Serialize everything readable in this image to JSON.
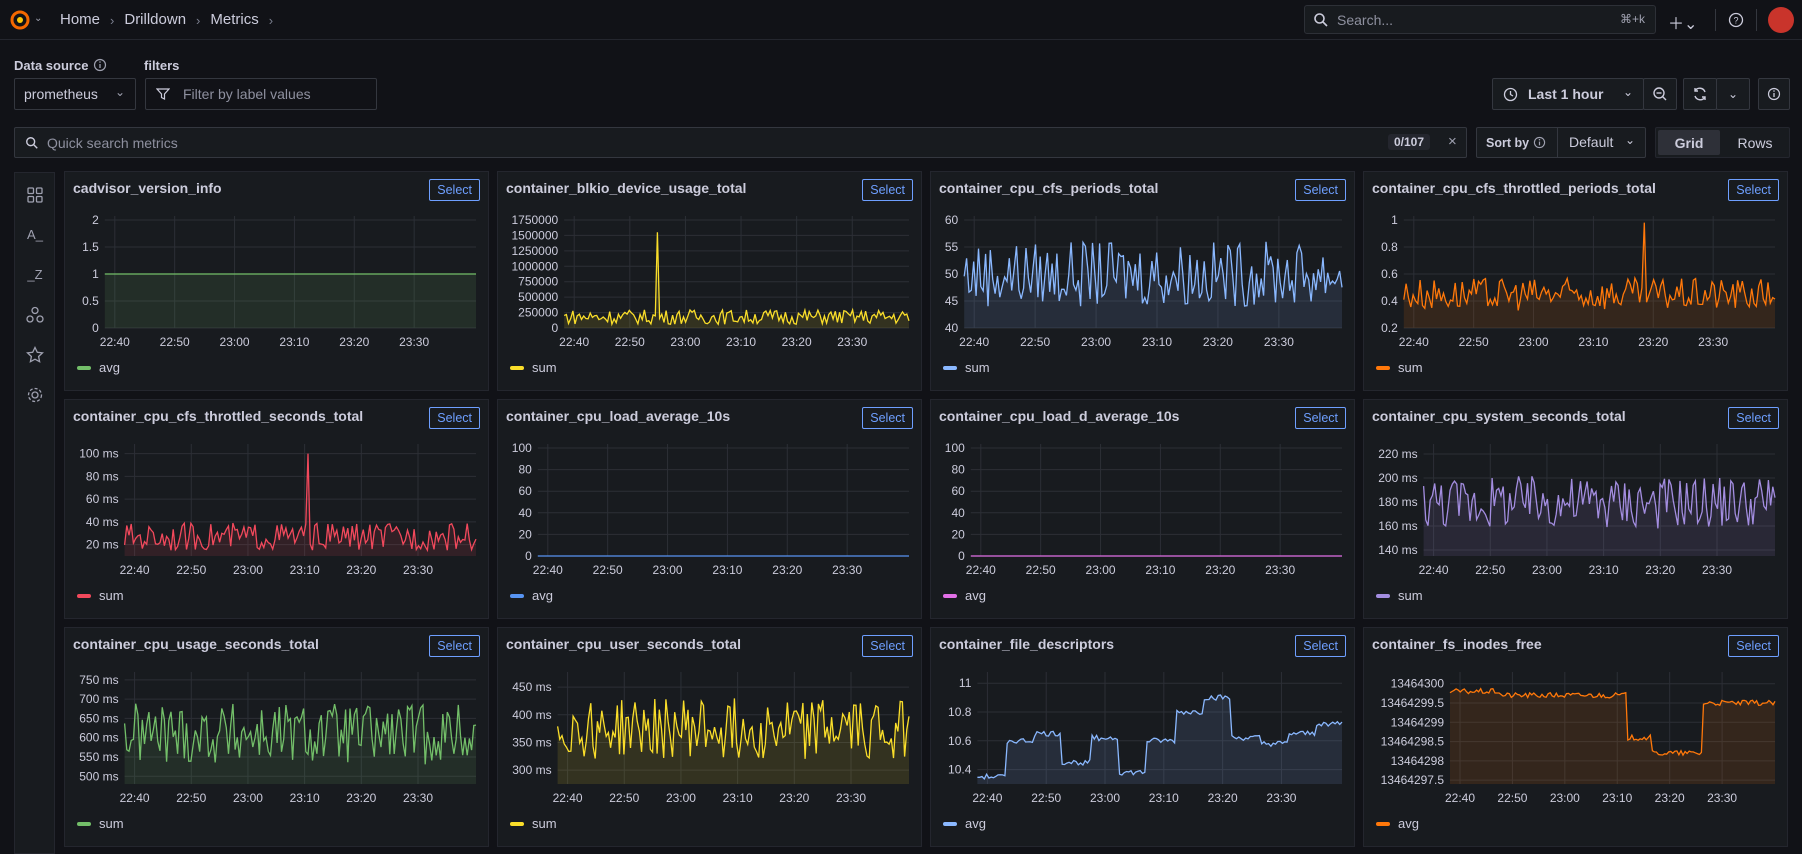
{
  "nav": {
    "breadcrumbs": [
      "Home",
      "Drilldown",
      "Metrics"
    ],
    "search_placeholder": "Search...",
    "search_shortcut": "⌘+k"
  },
  "controls": {
    "datasource_label": "Data source",
    "datasource_value": "prometheus",
    "filters_label": "filters",
    "filters_placeholder": "Filter by label values",
    "time_range": "Last 1 hour",
    "quick_search_placeholder": "Quick search metrics",
    "count_badge": "0/107",
    "sort_label": "Sort by",
    "sort_value": "Default",
    "view_grid": "Grid",
    "view_rows": "Rows"
  },
  "colors": {
    "green": "#73bf69",
    "yellow": "#fade2a",
    "blue": "#8ab8ff",
    "orange": "#ff780a",
    "red": "#f2495c",
    "blue2": "#5794f2",
    "pink": "#e16fe6",
    "purple": "#a38de0",
    "select": "#6e9fff"
  },
  "select_label": "Select",
  "x_ticks": [
    "22:40",
    "22:50",
    "23:00",
    "23:10",
    "23:20",
    "23:30"
  ],
  "panels": [
    {
      "title": "cadvisor_version_info",
      "legend": "avg",
      "color": "#73bf69",
      "y_ticks": [
        "2",
        "1.5",
        "1",
        "0.5",
        "0"
      ],
      "ylim": [
        0,
        2
      ],
      "pattern": "flat",
      "level": 1
    },
    {
      "title": "container_blkio_device_usage_total",
      "legend": "sum",
      "color": "#fade2a",
      "y_ticks": [
        "1750000",
        "1500000",
        "1250000",
        "1000000",
        "750000",
        "500000",
        "250000",
        "0"
      ],
      "ylim": [
        0,
        1750000
      ],
      "pattern": "spike",
      "base": 180000,
      "amp": 120000,
      "spike_at": 0.27,
      "spike_val": 1550000
    },
    {
      "title": "container_cpu_cfs_periods_total",
      "legend": "sum",
      "color": "#8ab8ff",
      "y_ticks": [
        "60",
        "55",
        "50",
        "45",
        "40"
      ],
      "ylim": [
        40,
        60
      ],
      "pattern": "noise",
      "base": 50,
      "amp": 6
    },
    {
      "title": "container_cpu_cfs_throttled_periods_total",
      "legend": "sum",
      "color": "#ff780a",
      "y_ticks": [
        "1",
        "0.8",
        "0.6",
        "0.4",
        "0.2"
      ],
      "ylim": [
        0.2,
        1
      ],
      "pattern": "spike",
      "base": 0.45,
      "amp": 0.12,
      "spike_at": 0.65,
      "spike_val": 0.98
    },
    {
      "title": "container_cpu_cfs_throttled_seconds_total",
      "legend": "sum",
      "color": "#f2495c",
      "y_ticks": [
        "100 ms",
        "80 ms",
        "60 ms",
        "40 ms",
        "20 ms"
      ],
      "ylim": [
        10,
        105
      ],
      "pattern": "spike",
      "base": 27,
      "amp": 12,
      "spike_at": 0.52,
      "spike_val": 100
    },
    {
      "title": "container_cpu_load_average_10s",
      "legend": "avg",
      "color": "#5794f2",
      "y_ticks": [
        "100",
        "80",
        "60",
        "40",
        "20",
        "0"
      ],
      "ylim": [
        0,
        100
      ],
      "pattern": "flat",
      "level": 0
    },
    {
      "title": "container_cpu_load_d_average_10s",
      "legend": "avg",
      "color": "#e16fe6",
      "y_ticks": [
        "100",
        "80",
        "60",
        "40",
        "20",
        "0"
      ],
      "ylim": [
        0,
        100
      ],
      "pattern": "flat",
      "level": 0
    },
    {
      "title": "container_cpu_system_seconds_total",
      "legend": "sum",
      "color": "#a38de0",
      "y_ticks": [
        "220 ms",
        "200 ms",
        "180 ms",
        "160 ms",
        "140 ms"
      ],
      "ylim": [
        135,
        225
      ],
      "pattern": "noise",
      "base": 180,
      "amp": 22
    },
    {
      "title": "container_cpu_usage_seconds_total",
      "legend": "sum",
      "color": "#73bf69",
      "y_ticks": [
        "750 ms",
        "700 ms",
        "650 ms",
        "600 ms",
        "550 ms",
        "500 ms"
      ],
      "ylim": [
        480,
        760
      ],
      "pattern": "noise",
      "base": 610,
      "amp": 80
    },
    {
      "title": "container_cpu_user_seconds_total",
      "legend": "sum",
      "color": "#fade2a",
      "y_ticks": [
        "450 ms",
        "400 ms",
        "350 ms",
        "300 ms"
      ],
      "ylim": [
        275,
        470
      ],
      "pattern": "noise",
      "base": 375,
      "amp": 55
    },
    {
      "title": "container_file_descriptors",
      "legend": "avg",
      "color": "#8ab8ff",
      "y_ticks": [
        "11",
        "10.8",
        "10.6",
        "10.4"
      ],
      "ylim": [
        10.3,
        11.05
      ],
      "pattern": "steps",
      "steps": [
        10.35,
        10.6,
        10.65,
        10.45,
        10.62,
        10.38,
        10.6,
        10.8,
        10.9,
        10.62,
        10.58,
        10.65,
        10.72
      ]
    },
    {
      "title": "container_fs_inodes_free",
      "legend": "avg",
      "color": "#ff780a",
      "y_ticks": [
        "13464300",
        "13464299.5",
        "13464299",
        "13464298.5",
        "13464298",
        "13464297.5"
      ],
      "ylim": [
        13464297.4,
        13464300.2
      ],
      "pattern": "steps",
      "steps": [
        13464299.8,
        13464299.8,
        13464299.7,
        13464299.7,
        13464299.7,
        13464299.7,
        13464299.7,
        13464298.6,
        13464298.2,
        13464298.2,
        13464299.5,
        13464299.5,
        13464299.5
      ]
    }
  ]
}
